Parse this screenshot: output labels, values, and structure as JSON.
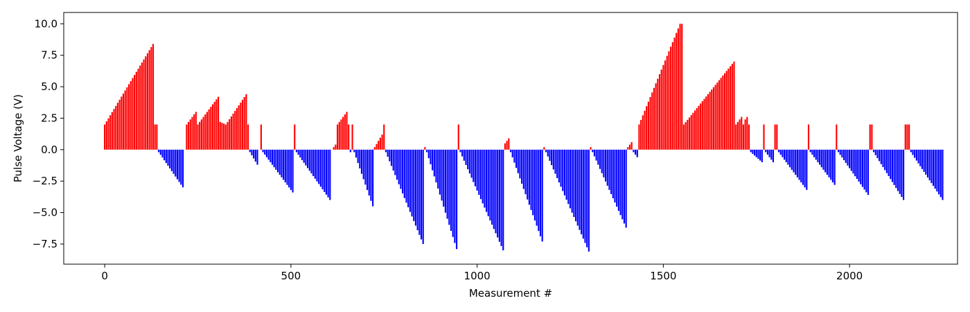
{
  "chart_data": {
    "type": "bar",
    "title": "",
    "xlabel": "Measurement #",
    "ylabel": "Pulse Voltage (V)",
    "xlim": [
      -110,
      2290
    ],
    "ylim": [
      -9.1,
      10.9
    ],
    "xticks": [
      0,
      500,
      1000,
      1500,
      2000
    ],
    "yticks": [
      -7.5,
      -5.0,
      -2.5,
      0.0,
      2.5,
      5.0,
      7.5,
      10.0
    ],
    "xtick_labels": [
      "0",
      "500",
      "1000",
      "1500",
      "2000"
    ],
    "ytick_labels": [
      "−7.5",
      "−5.0",
      "−2.5",
      "0.0",
      "2.5",
      "5.0",
      "7.5",
      "10.0"
    ],
    "grid": false,
    "legend": "none",
    "bar_step": 5,
    "colors": {
      "positive": "#ff0000",
      "negative": "#0000ff"
    },
    "segments": [
      {
        "x0": 0,
        "x1": 130,
        "v0": 2.0,
        "v1": 8.4
      },
      {
        "x0": 135,
        "x1": 140,
        "v0": 2.0,
        "v1": 2.0
      },
      {
        "x0": 145,
        "x1": 210,
        "v0": -0.2,
        "v1": -3.0
      },
      {
        "x0": 220,
        "x1": 245,
        "v0": 2.0,
        "v1": 3.0
      },
      {
        "x0": 250,
        "x1": 305,
        "v0": 2.0,
        "v1": 4.2
      },
      {
        "x0": 310,
        "x1": 325,
        "v0": 2.2,
        "v1": 2.0
      },
      {
        "x0": 330,
        "x1": 380,
        "v0": 2.2,
        "v1": 4.4
      },
      {
        "x0": 385,
        "x1": 385,
        "v0": 2.0,
        "v1": 2.0
      },
      {
        "x0": 390,
        "x1": 410,
        "v0": -0.2,
        "v1": -1.2
      },
      {
        "x0": 420,
        "x1": 420,
        "v0": 2.0,
        "v1": 2.0
      },
      {
        "x0": 425,
        "x1": 505,
        "v0": -0.2,
        "v1": -3.4
      },
      {
        "x0": 510,
        "x1": 510,
        "v0": 2.0,
        "v1": 2.0
      },
      {
        "x0": 515,
        "x1": 605,
        "v0": -0.2,
        "v1": -4.0
      },
      {
        "x0": 615,
        "x1": 620,
        "v0": 0.2,
        "v1": 0.4
      },
      {
        "x0": 625,
        "x1": 650,
        "v0": 2.0,
        "v1": 3.0
      },
      {
        "x0": 655,
        "x1": 655,
        "v0": 2.0,
        "v1": 2.0
      },
      {
        "x0": 660,
        "x1": 660,
        "v0": -0.2,
        "v1": -0.2
      },
      {
        "x0": 665,
        "x1": 665,
        "v0": 2.0,
        "v1": 2.0
      },
      {
        "x0": 670,
        "x1": 720,
        "v0": -0.2,
        "v1": -4.5
      },
      {
        "x0": 725,
        "x1": 745,
        "v0": 0.2,
        "v1": 1.2
      },
      {
        "x0": 750,
        "x1": 750,
        "v0": 2.0,
        "v1": 2.0
      },
      {
        "x0": 755,
        "x1": 855,
        "v0": -0.2,
        "v1": -7.5
      },
      {
        "x0": 860,
        "x1": 860,
        "v0": 0.2,
        "v1": 0.2
      },
      {
        "x0": 865,
        "x1": 945,
        "v0": -0.2,
        "v1": -7.9
      },
      {
        "x0": 950,
        "x1": 950,
        "v0": 2.0,
        "v1": 2.0
      },
      {
        "x0": 955,
        "x1": 1070,
        "v0": -0.2,
        "v1": -8.0
      },
      {
        "x0": 1075,
        "x1": 1085,
        "v0": 0.5,
        "v1": 0.9
      },
      {
        "x0": 1090,
        "x1": 1175,
        "v0": -0.2,
        "v1": -7.3
      },
      {
        "x0": 1180,
        "x1": 1180,
        "v0": 0.2,
        "v1": 0.2
      },
      {
        "x0": 1185,
        "x1": 1300,
        "v0": -0.2,
        "v1": -8.1
      },
      {
        "x0": 1305,
        "x1": 1305,
        "v0": 0.2,
        "v1": 0.2
      },
      {
        "x0": 1310,
        "x1": 1400,
        "v0": -0.2,
        "v1": -6.2
      },
      {
        "x0": 1405,
        "x1": 1415,
        "v0": 0.2,
        "v1": 0.6
      },
      {
        "x0": 1420,
        "x1": 1430,
        "v0": -0.2,
        "v1": -0.6
      },
      {
        "x0": 1435,
        "x1": 1545,
        "v0": 2.0,
        "v1": 10.0
      },
      {
        "x0": 1550,
        "x1": 1550,
        "v0": 10.0,
        "v1": 10.0
      },
      {
        "x0": 1555,
        "x1": 1690,
        "v0": 2.0,
        "v1": 7.0
      },
      {
        "x0": 1695,
        "x1": 1710,
        "v0": 2.0,
        "v1": 2.6
      },
      {
        "x0": 1715,
        "x1": 1715,
        "v0": 2.0,
        "v1": 2.0
      },
      {
        "x0": 1720,
        "x1": 1720,
        "v0": 2.4,
        "v1": 2.4
      },
      {
        "x0": 1725,
        "x1": 1730,
        "v0": 2.6,
        "v1": 2.0
      },
      {
        "x0": 1735,
        "x1": 1765,
        "v0": -0.2,
        "v1": -1.0
      },
      {
        "x0": 1770,
        "x1": 1770,
        "v0": 2.0,
        "v1": 2.0
      },
      {
        "x0": 1775,
        "x1": 1795,
        "v0": -0.2,
        "v1": -1.0
      },
      {
        "x0": 1800,
        "x1": 1805,
        "v0": 2.0,
        "v1": 2.0
      },
      {
        "x0": 1810,
        "x1": 1885,
        "v0": -0.2,
        "v1": -3.2
      },
      {
        "x0": 1890,
        "x1": 1890,
        "v0": 2.0,
        "v1": 2.0
      },
      {
        "x0": 1895,
        "x1": 1960,
        "v0": -0.2,
        "v1": -2.8
      },
      {
        "x0": 1965,
        "x1": 1965,
        "v0": 2.0,
        "v1": 2.0
      },
      {
        "x0": 1970,
        "x1": 2050,
        "v0": -0.2,
        "v1": -3.6
      },
      {
        "x0": 2055,
        "x1": 2060,
        "v0": 2.0,
        "v1": 2.0
      },
      {
        "x0": 2065,
        "x1": 2145,
        "v0": -0.2,
        "v1": -4.0
      },
      {
        "x0": 2150,
        "x1": 2160,
        "v0": 2.0,
        "v1": 2.0
      },
      {
        "x0": 2165,
        "x1": 2250,
        "v0": -0.2,
        "v1": -4.0
      }
    ]
  }
}
